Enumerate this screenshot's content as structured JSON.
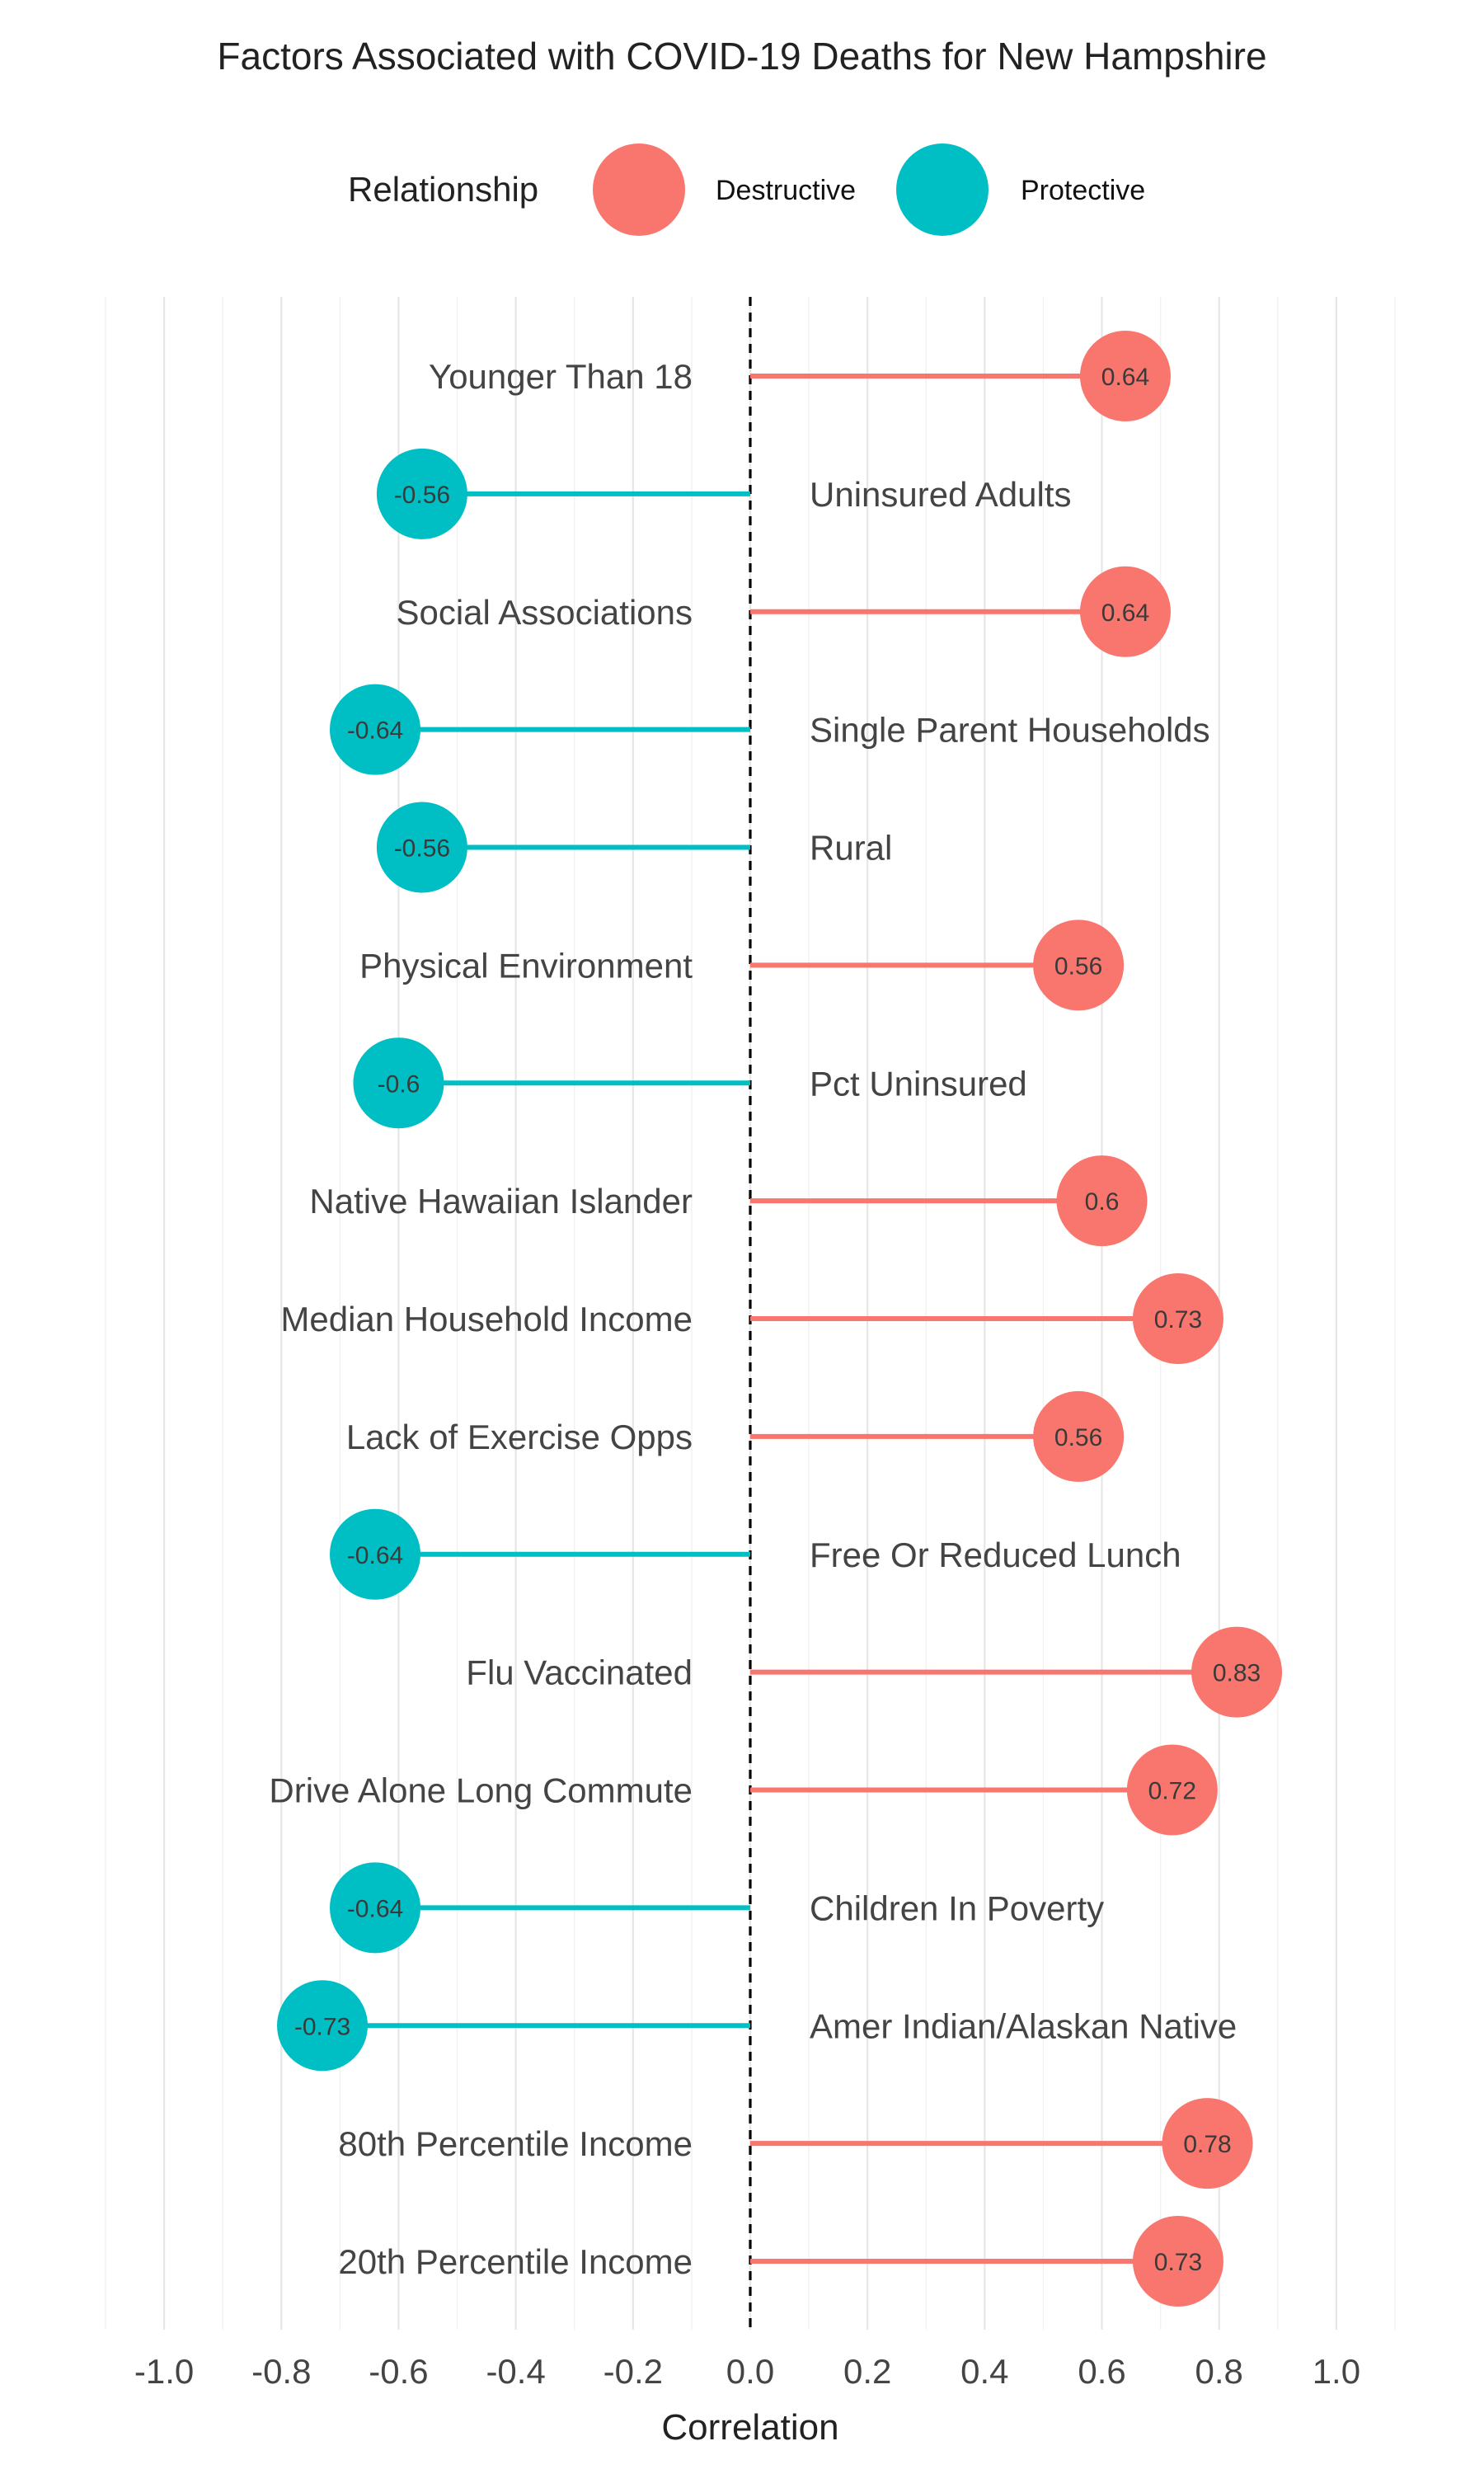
{
  "chart_data": {
    "type": "lollipop",
    "title": "Factors Associated with COVID-19 Deaths for New Hampshire",
    "xlabel": "Correlation",
    "ylabel": "",
    "xlim": [
      -1.1,
      1.1
    ],
    "x_ticks": [
      "-1.0",
      "-0.8",
      "-0.6",
      "-0.4",
      "-0.2",
      "0.0",
      "0.2",
      "0.4",
      "0.6",
      "0.8",
      "1.0"
    ],
    "x_tick_values": [
      -1.0,
      -0.8,
      -0.6,
      -0.4,
      -0.2,
      0.0,
      0.2,
      0.4,
      0.6,
      0.8,
      1.0
    ],
    "grid": true,
    "reference_line": 0,
    "legend": {
      "title": "Relationship",
      "placement": "top",
      "entries": [
        {
          "label": "Destructive",
          "color": "#F8766D"
        },
        {
          "label": "Protective",
          "color": "#00BFC4"
        }
      ]
    },
    "points": [
      {
        "category": "Younger Than 18",
        "value": 0.64,
        "label": "0.64",
        "relationship": "Destructive"
      },
      {
        "category": "Uninsured Adults",
        "value": -0.56,
        "label": "-0.56",
        "relationship": "Protective"
      },
      {
        "category": "Social Associations",
        "value": 0.64,
        "label": "0.64",
        "relationship": "Destructive"
      },
      {
        "category": "Single Parent Households",
        "value": -0.64,
        "label": "-0.64",
        "relationship": "Protective"
      },
      {
        "category": "Rural",
        "value": -0.56,
        "label": "-0.56",
        "relationship": "Protective"
      },
      {
        "category": "Physical Environment",
        "value": 0.56,
        "label": "0.56",
        "relationship": "Destructive"
      },
      {
        "category": "Pct Uninsured",
        "value": -0.6,
        "label": "-0.6",
        "relationship": "Protective"
      },
      {
        "category": "Native Hawaiian Islander",
        "value": 0.6,
        "label": "0.6",
        "relationship": "Destructive"
      },
      {
        "category": "Median Household Income",
        "value": 0.73,
        "label": "0.73",
        "relationship": "Destructive"
      },
      {
        "category": "Lack of Exercise Opps",
        "value": 0.56,
        "label": "0.56",
        "relationship": "Destructive"
      },
      {
        "category": "Free Or Reduced Lunch",
        "value": -0.64,
        "label": "-0.64",
        "relationship": "Protective"
      },
      {
        "category": "Flu Vaccinated",
        "value": 0.83,
        "label": "0.83",
        "relationship": "Destructive"
      },
      {
        "category": "Drive Alone Long Commute",
        "value": 0.72,
        "label": "0.72",
        "relationship": "Destructive"
      },
      {
        "category": "Children In Poverty",
        "value": -0.64,
        "label": "-0.64",
        "relationship": "Protective"
      },
      {
        "category": "Amer Indian/Alaskan Native",
        "value": -0.73,
        "label": "-0.73",
        "relationship": "Protective"
      },
      {
        "category": "80th Percentile Income",
        "value": 0.78,
        "label": "0.78",
        "relationship": "Destructive"
      },
      {
        "category": "20th Percentile Income",
        "value": 0.73,
        "label": "0.73",
        "relationship": "Destructive"
      }
    ]
  }
}
